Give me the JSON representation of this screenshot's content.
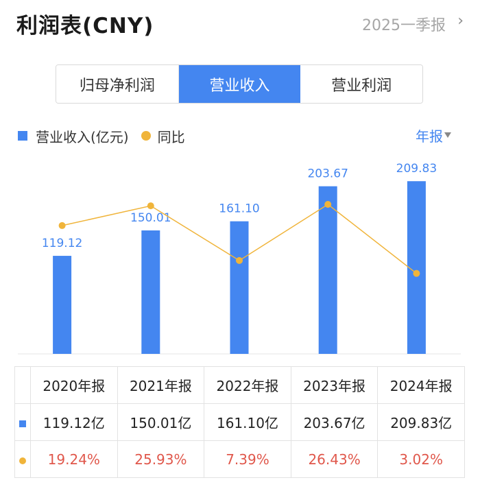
{
  "header": {
    "title": "利润表(CNY)",
    "period": "2025一季报",
    "chevron": "›"
  },
  "tabs": [
    {
      "label": "归母净利润",
      "active": false
    },
    {
      "label": "营业收入",
      "active": true
    },
    {
      "label": "营业利润",
      "active": false
    }
  ],
  "legend": {
    "bar_label": "营业收入(亿元)",
    "line_label": "同比"
  },
  "period_select": {
    "label": "年报"
  },
  "colors": {
    "bar": "#4486f0",
    "line": "#f0b43a",
    "negative_text": "#e0574b"
  },
  "chart_data": {
    "type": "bar",
    "categories": [
      "2020年报",
      "2021年报",
      "2022年报",
      "2023年报",
      "2024年报"
    ],
    "series": [
      {
        "name": "营业收入(亿元)",
        "type": "bar",
        "values": [
          119.12,
          150.01,
          161.1,
          203.67,
          209.83
        ],
        "labels": [
          "119.12",
          "150.01",
          "161.10",
          "203.67",
          "209.83"
        ]
      },
      {
        "name": "同比",
        "type": "line",
        "values": [
          19.24,
          25.93,
          7.39,
          26.43,
          3.02
        ]
      }
    ]
  },
  "table": {
    "headers": [
      "2020年报",
      "2021年报",
      "2022年报",
      "2023年报",
      "2024年报"
    ],
    "revenue": [
      "119.12亿",
      "150.01亿",
      "161.10亿",
      "203.67亿",
      "209.83亿"
    ],
    "yoy": [
      "19.24%",
      "25.93%",
      "7.39%",
      "26.43%",
      "3.02%"
    ]
  }
}
